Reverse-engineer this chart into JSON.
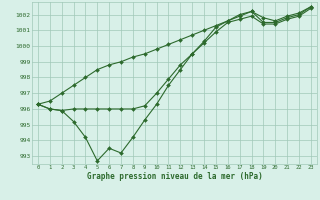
{
  "xlabel": "Graphe pression niveau de la mer (hPa)",
  "x": [
    0,
    1,
    2,
    3,
    4,
    5,
    6,
    7,
    8,
    9,
    10,
    11,
    12,
    13,
    14,
    15,
    16,
    17,
    18,
    19,
    20,
    21,
    22,
    23
  ],
  "line_volatile": [
    996.3,
    996.0,
    995.9,
    995.2,
    994.2,
    992.7,
    993.5,
    993.2,
    994.2,
    995.3,
    996.3,
    997.5,
    998.5,
    999.5,
    1000.3,
    1001.2,
    1001.6,
    1002.0,
    1002.2,
    1001.5,
    1001.5,
    1001.8,
    1002.0,
    1002.5
  ],
  "line_flat": [
    996.3,
    996.0,
    995.9,
    996.0,
    996.0,
    996.0,
    996.0,
    996.0,
    996.0,
    996.2,
    997.0,
    997.9,
    998.8,
    999.5,
    1000.2,
    1000.9,
    1001.5,
    1001.7,
    1001.9,
    1001.4,
    1001.4,
    1001.7,
    1001.9,
    1002.4
  ],
  "line_rising": [
    996.3,
    996.5,
    997.0,
    997.5,
    998.0,
    998.5,
    998.8,
    999.0,
    999.3,
    999.5,
    999.8,
    1000.1,
    1000.4,
    1000.7,
    1001.0,
    1001.3,
    1001.6,
    1001.9,
    1002.2,
    1001.8,
    1001.6,
    1001.9,
    1002.1,
    1002.5
  ],
  "line_color": "#2d6a2d",
  "bg_color": "#d8f0e8",
  "grid_color": "#a0c8b8",
  "ylim": [
    992.5,
    1002.8
  ],
  "xlim": [
    -0.5,
    23.5
  ],
  "yticks": [
    993,
    994,
    995,
    996,
    997,
    998,
    999,
    1000,
    1001,
    1002
  ],
  "xticks": [
    0,
    1,
    2,
    3,
    4,
    5,
    6,
    7,
    8,
    9,
    10,
    11,
    12,
    13,
    14,
    15,
    16,
    17,
    18,
    19,
    20,
    21,
    22,
    23
  ]
}
